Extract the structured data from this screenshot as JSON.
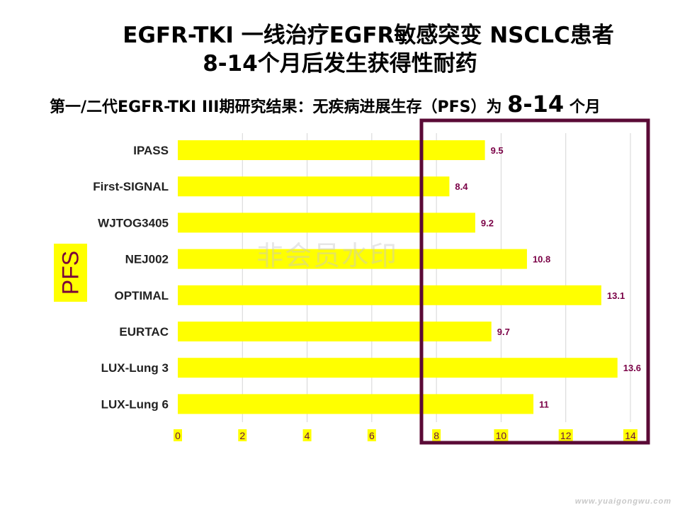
{
  "titles": {
    "line1": "EGFR-TKI 一线治疗EGFR敏感突变 NSCLC患者",
    "line2": "8-14个月后发生获得性耐药"
  },
  "subtitle": {
    "prefix": "第一/二代EGFR-TKI III期研究结果：无疾病进展生存（PFS）为 ",
    "highlight": "8-14",
    "suffix": " 个月"
  },
  "axis": {
    "ylabel": "PFS"
  },
  "watermark": "非会员水印",
  "site": "www.yuaigongwu.com",
  "colors": {
    "bar": "#ffff00",
    "value_label": "#7a0046",
    "highlight_box": "#5a0a36",
    "tick_bg": "#ffff00"
  },
  "chart_data": {
    "type": "bar",
    "orientation": "horizontal",
    "categories": [
      "IPASS",
      "First-SIGNAL",
      "WJTOG3405",
      "NEJ002",
      "OPTIMAL",
      "EURTAC",
      "LUX-Lung 3",
      "LUX-Lung 6"
    ],
    "values": [
      9.5,
      8.4,
      9.2,
      10.8,
      13.1,
      9.7,
      13.6,
      11
    ],
    "value_labels": [
      "9.5",
      "8.4",
      "9.2",
      "10.8",
      "13.1",
      "9.7",
      "13.6",
      "11"
    ],
    "xlim": [
      0,
      14
    ],
    "xticks": [
      0,
      2,
      4,
      6,
      8,
      10,
      12,
      14
    ],
    "xtick_labels": [
      "0",
      "2",
      "4",
      "6",
      "8",
      "10",
      "12",
      "14"
    ],
    "ylabel": "PFS",
    "grid": "vertical",
    "highlight_range": [
      8,
      14
    ]
  }
}
